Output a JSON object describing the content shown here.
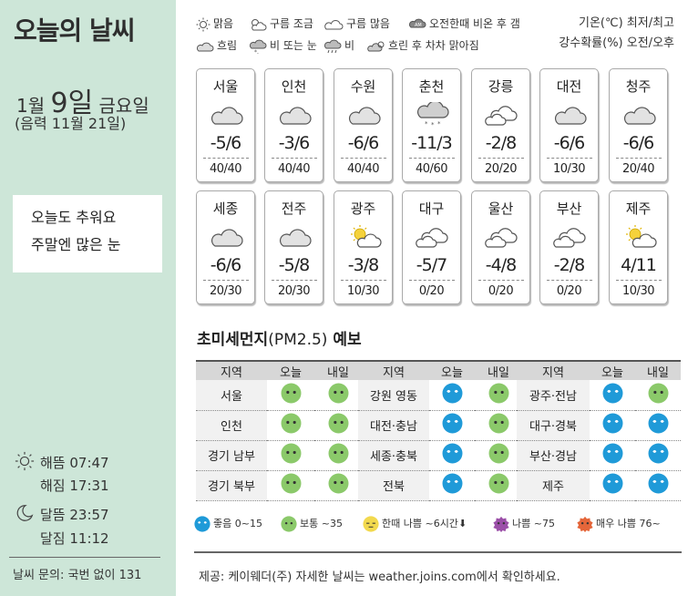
{
  "header": {
    "title": "오늘의 날씨",
    "month_day_prefix": "1월 ",
    "day_big": "9일",
    "weekday": " 금요일",
    "lunar": "(음력 11월 21일)",
    "note_line1": "오늘도 추워요",
    "note_line2": "주말엔 많은 눈"
  },
  "sun_moon": {
    "sunrise": "해뜸 07:47",
    "sunset": "해짐 17:31",
    "moonrise": "달뜸 23:57",
    "moonset": "달짐 11:12"
  },
  "contact": "날씨 문의: 국번 없이 131",
  "legend": {
    "clear": "맑음",
    "partly_cloudy": "구름 조금",
    "mostly_cloudy": "구름 많음",
    "am_rain_clear": "오전한때 비온 후 갬",
    "cloudy": "흐림",
    "rain_or_snow": "비 또는 눈",
    "rain": "비",
    "cloudy_then_clear": "흐린 후 차차 맑아짐",
    "unit_temp": "기온(℃) 최저/최고",
    "unit_rain": "강수확률(%) 오전/오후"
  },
  "cities_row1": [
    {
      "name": "서울",
      "icon": "cloud-icon",
      "temp": "-5/6",
      "rain": "40/40"
    },
    {
      "name": "인천",
      "icon": "cloud-icon",
      "temp": "-3/6",
      "rain": "40/40"
    },
    {
      "name": "수원",
      "icon": "cloud-icon",
      "temp": "-6/6",
      "rain": "40/40"
    },
    {
      "name": "춘천",
      "icon": "snow-cloud-icon",
      "temp": "-11/3",
      "rain": "40/60"
    },
    {
      "name": "강릉",
      "icon": "partly-cloudy-icon",
      "temp": "-2/8",
      "rain": "20/20"
    },
    {
      "name": "대전",
      "icon": "cloud-icon",
      "temp": "-6/6",
      "rain": "10/30"
    },
    {
      "name": "청주",
      "icon": "cloud-icon",
      "temp": "-6/6",
      "rain": "20/40"
    }
  ],
  "cities_row2": [
    {
      "name": "세종",
      "icon": "cloud-icon",
      "temp": "-6/6",
      "rain": "20/30"
    },
    {
      "name": "전주",
      "icon": "cloud-icon",
      "temp": "-5/8",
      "rain": "20/30"
    },
    {
      "name": "광주",
      "icon": "sun-cloud-icon",
      "temp": "-3/8",
      "rain": "10/30"
    },
    {
      "name": "대구",
      "icon": "partly-cloudy-icon",
      "temp": "-5/7",
      "rain": "0/20"
    },
    {
      "name": "울산",
      "icon": "partly-cloudy-icon",
      "temp": "-4/8",
      "rain": "0/20"
    },
    {
      "name": "부산",
      "icon": "partly-cloudy-icon",
      "temp": "-2/8",
      "rain": "0/20"
    },
    {
      "name": "제주",
      "icon": "sun-cloud-icon",
      "temp": "4/11",
      "rain": "10/30"
    }
  ],
  "pm": {
    "title_bold": "초미세먼지",
    "title_sub": "(PM2.5)",
    "title_tail": " 예보",
    "col_region": "지역",
    "col_today": "오늘",
    "col_tomorrow": "내일",
    "tables": [
      {
        "rows": [
          {
            "region": "서울",
            "today": "normal",
            "tomorrow": "normal"
          },
          {
            "region": "인천",
            "today": "normal",
            "tomorrow": "normal"
          },
          {
            "region": "경기 남부",
            "today": "normal",
            "tomorrow": "normal"
          },
          {
            "region": "경기 북부",
            "today": "normal",
            "tomorrow": "normal"
          }
        ]
      },
      {
        "rows": [
          {
            "region": "강원 영동",
            "today": "good",
            "tomorrow": "normal"
          },
          {
            "region": "대전·충남",
            "today": "good",
            "tomorrow": "normal"
          },
          {
            "region": "세종·충북",
            "today": "good",
            "tomorrow": "normal"
          },
          {
            "region": "전북",
            "today": "good",
            "tomorrow": "normal"
          }
        ]
      },
      {
        "rows": [
          {
            "region": "광주·전남",
            "today": "good",
            "tomorrow": "normal"
          },
          {
            "region": "대구·경북",
            "today": "good",
            "tomorrow": "good"
          },
          {
            "region": "부산·경남",
            "today": "good",
            "tomorrow": "good"
          },
          {
            "region": "제주",
            "today": "good",
            "tomorrow": "good"
          }
        ]
      }
    ],
    "legend": {
      "good": "좋음 0~15",
      "normal": "보통 ~35",
      "temp_bad": "한때 나쁨 ~6시간",
      "bad": "나쁨 ~75",
      "very_bad": "매우 나쁨 76~"
    }
  },
  "colors": {
    "good": "#1f9ad8",
    "normal": "#8bc96a",
    "temp_bad": "#f2d94e",
    "bad": "#9b4fa8",
    "very_bad": "#e5663a",
    "left_bg": "#cde6d8"
  },
  "provider": "제공: 케이웨더(주) 자세한 날씨는 weather.joins.com에서 확인하세요."
}
